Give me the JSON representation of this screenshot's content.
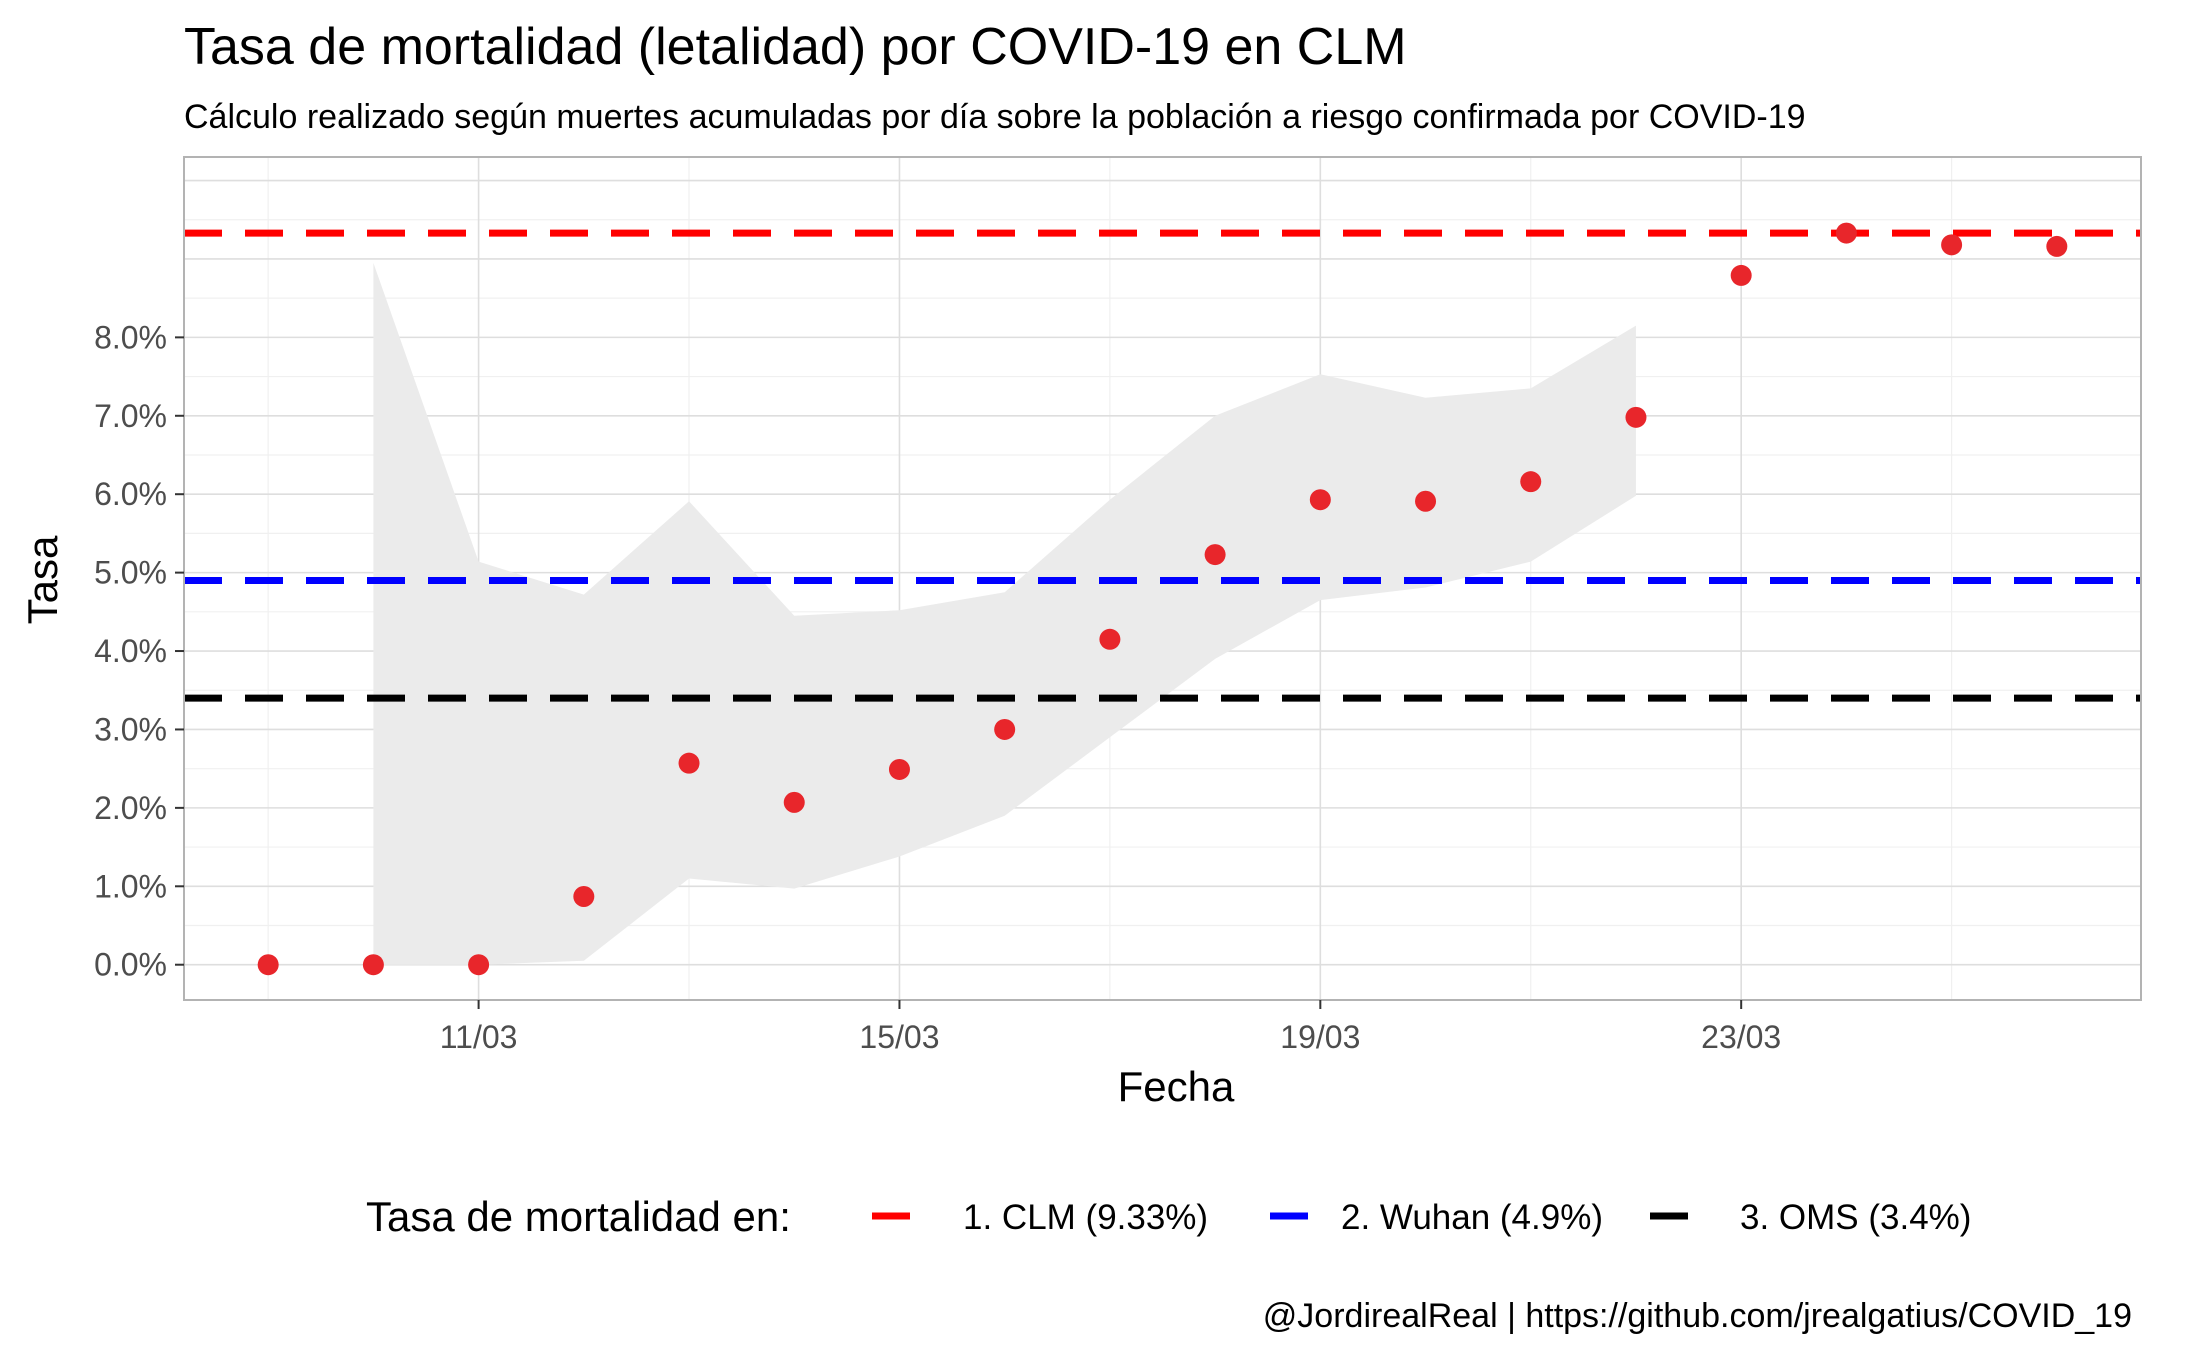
{
  "chart_data": {
    "type": "scatter",
    "title": "Tasa de mortalidad (letalidad) por COVID-19 en CLM",
    "subtitle": "Cálculo realizado según muertes acumuladas por día sobre la población a riesgo confirmada por COVID-19",
    "xlabel": "Fecha",
    "ylabel": "Tasa",
    "caption": "@JordirealReal | https://github.com/jrealgatius/COVID_19",
    "x_ticks": [
      "11/03",
      "15/03",
      "19/03",
      "23/03"
    ],
    "y_ticks": [
      "0.0%",
      "1.0%",
      "2.0%",
      "3.0%",
      "4.0%",
      "5.0%",
      "6.0%",
      "7.0%",
      "8.0%"
    ],
    "ylim": [
      -0.45,
      10.3
    ],
    "xlim": [
      "08/03 (approx. 08/03 05:00)",
      "26/03 (approx. 26/03 20:00)"
    ],
    "x_days": [
      9,
      10,
      11,
      12,
      13,
      14,
      15,
      16,
      17,
      18,
      19,
      20,
      21,
      22,
      23,
      24,
      25,
      26
    ],
    "points": {
      "dates": [
        "09/03",
        "10/03",
        "11/03",
        "12/03",
        "13/03",
        "14/03",
        "15/03",
        "16/03",
        "17/03",
        "18/03",
        "19/03",
        "20/03",
        "21/03",
        "22/03",
        "23/03",
        "24/03",
        "25/03",
        "26/03"
      ],
      "values": [
        0.0,
        0.0,
        0.0,
        0.87,
        2.57,
        2.07,
        2.49,
        3.0,
        4.15,
        5.23,
        5.93,
        5.91,
        6.16,
        6.98,
        8.79,
        9.33,
        9.18,
        9.16
      ]
    },
    "confidence_band": {
      "days": [
        10,
        11,
        12,
        13,
        14,
        15,
        16,
        17,
        18,
        19,
        20,
        21,
        22
      ],
      "lower": [
        0.0,
        0.0,
        0.05,
        1.1,
        0.97,
        1.38,
        1.9,
        2.9,
        3.9,
        4.65,
        4.81,
        5.14,
        5.98
      ],
      "upper": [
        8.95,
        5.14,
        4.72,
        5.91,
        4.45,
        4.52,
        4.75,
        5.93,
        7.0,
        7.53,
        7.23,
        7.35,
        8.15
      ]
    },
    "reference_lines": [
      {
        "name": "1. CLM (9.33%)",
        "value": 9.33,
        "color": "#ff0000"
      },
      {
        "name": "2. Wuhan (4.9%)",
        "value": 4.9,
        "color": "#0000ff"
      },
      {
        "name": "3. OMS (3.4%)",
        "value": 3.4,
        "color": "#000000"
      }
    ],
    "legend": {
      "title": "Tasa de mortalidad en:",
      "position": "bottom"
    },
    "point_color": "#e8262b",
    "band_color": "#ebebeb",
    "grid": true
  }
}
